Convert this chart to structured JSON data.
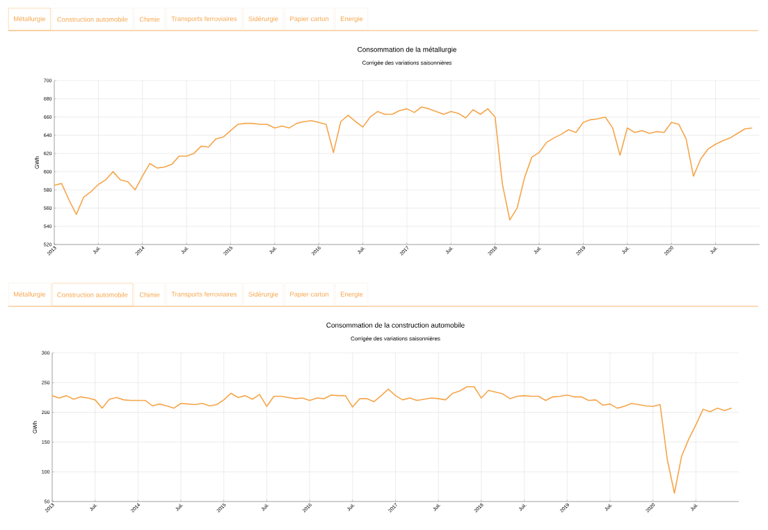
{
  "chart_data": [
    {
      "type": "line",
      "title": "Consommation de la métallurgie",
      "subtitle": "Corrigée des variations saisonnières",
      "ylabel": "GWh",
      "annotations": [
        "Métallurgie",
        "Construction automobile",
        "Chimie",
        "Transports ferroviaires",
        "Sidérurgie",
        "Papier carton",
        "Energie"
      ],
      "x": [
        "2013-01",
        "2013-02",
        "2013-03",
        "2013-04",
        "2013-05",
        "2013-06",
        "2013-07",
        "2013-08",
        "2013-09",
        "2013-10",
        "2013-11",
        "2013-12",
        "2014-01",
        "2014-02",
        "2014-03",
        "2014-04",
        "2014-05",
        "2014-06",
        "2014-07",
        "2014-08",
        "2014-09",
        "2014-10",
        "2014-11",
        "2014-12",
        "2015-01",
        "2015-02",
        "2015-03",
        "2015-04",
        "2015-05",
        "2015-06",
        "2015-07",
        "2015-08",
        "2015-09",
        "2015-10",
        "2015-11",
        "2015-12",
        "2016-01",
        "2016-02",
        "2016-03",
        "2016-04",
        "2016-05",
        "2016-06",
        "2016-07",
        "2016-08",
        "2016-09",
        "2016-10",
        "2016-11",
        "2016-12",
        "2017-01",
        "2017-02",
        "2017-03",
        "2017-04",
        "2017-05",
        "2017-06",
        "2017-07",
        "2017-08",
        "2017-09",
        "2017-10",
        "2017-11",
        "2017-12",
        "2018-01",
        "2018-02",
        "2018-03",
        "2018-04",
        "2018-05",
        "2018-06",
        "2018-07",
        "2018-08",
        "2018-09",
        "2018-10",
        "2018-11",
        "2018-12",
        "2019-01",
        "2019-02",
        "2019-03",
        "2019-04",
        "2019-05",
        "2019-06",
        "2019-07",
        "2019-08",
        "2019-09",
        "2019-10",
        "2019-11",
        "2019-12",
        "2020-01",
        "2020-02",
        "2020-03",
        "2020-04",
        "2020-05",
        "2020-06",
        "2020-07",
        "2020-08",
        "2020-09",
        "2020-10",
        "2020-11",
        "2020-12"
      ],
      "series": [
        {
          "color": "#f5a54a",
          "values": [
            585,
            587,
            569,
            553,
            572,
            578,
            586,
            591,
            600,
            591,
            589,
            580,
            595,
            609,
            604,
            605,
            608,
            617,
            617,
            620,
            628,
            627,
            636,
            638,
            645,
            652,
            653,
            653,
            652,
            652,
            648,
            650,
            648,
            653,
            655,
            656,
            654,
            652,
            621,
            655,
            662,
            655,
            649,
            660,
            666,
            663,
            663,
            667,
            669,
            665,
            671,
            669,
            666,
            663,
            666,
            664,
            659,
            668,
            663,
            669,
            660,
            586,
            547,
            560,
            593,
            616,
            621,
            632,
            637,
            641,
            646,
            643,
            654,
            657,
            658,
            660,
            648,
            618,
            648,
            643,
            645,
            642,
            644,
            643,
            654,
            652,
            636,
            595,
            614,
            625,
            630,
            634,
            637,
            642,
            647,
            648
          ]
        }
      ],
      "xlim": [
        "2013-01",
        "2021-01"
      ],
      "ylim": [
        520,
        700
      ],
      "xticks": [
        {
          "value": "2013",
          "label": "2013"
        },
        {
          "value": "2013-07",
          "label": "Juil."
        },
        {
          "value": "2014",
          "label": "2014"
        },
        {
          "value": "2014-07",
          "label": "Juil."
        },
        {
          "value": "2015",
          "label": "2015"
        },
        {
          "value": "2015-07",
          "label": "Juil."
        },
        {
          "value": "2016",
          "label": "2016"
        },
        {
          "value": "2016-07",
          "label": "Juil."
        },
        {
          "value": "2017",
          "label": "2017"
        },
        {
          "value": "2017-07",
          "label": "Juil."
        },
        {
          "value": "2018",
          "label": "2018"
        },
        {
          "value": "2018-07",
          "label": "Juil."
        },
        {
          "value": "2019",
          "label": "2019"
        },
        {
          "value": "2019-07",
          "label": "Juil."
        },
        {
          "value": "2020",
          "label": "2020"
        },
        {
          "value": "2020-07",
          "label": "Juil."
        }
      ],
      "yticks": [
        520,
        540,
        560,
        580,
        600,
        620,
        640,
        660,
        680,
        700
      ],
      "grid": true
    },
    {
      "type": "line",
      "title": "Consommation de la construction automobile",
      "subtitle": "Corrigée des variations saisonnières",
      "ylabel": "GWh",
      "annotations": [
        "Métallurgie",
        "Construction automobile",
        "Chimie",
        "Transports ferroviaires",
        "Sidérurgie",
        "Papier carton",
        "Energie"
      ],
      "x": [
        "2013-01",
        "2013-02",
        "2013-03",
        "2013-04",
        "2013-05",
        "2013-06",
        "2013-07",
        "2013-08",
        "2013-09",
        "2013-10",
        "2013-11",
        "2013-12",
        "2014-01",
        "2014-02",
        "2014-03",
        "2014-04",
        "2014-05",
        "2014-06",
        "2014-07",
        "2014-08",
        "2014-09",
        "2014-10",
        "2014-11",
        "2014-12",
        "2015-01",
        "2015-02",
        "2015-03",
        "2015-04",
        "2015-05",
        "2015-06",
        "2015-07",
        "2015-08",
        "2015-09",
        "2015-10",
        "2015-11",
        "2015-12",
        "2016-01",
        "2016-02",
        "2016-03",
        "2016-04",
        "2016-05",
        "2016-06",
        "2016-07",
        "2016-08",
        "2016-09",
        "2016-10",
        "2016-11",
        "2016-12",
        "2017-01",
        "2017-02",
        "2017-03",
        "2017-04",
        "2017-05",
        "2017-06",
        "2017-07",
        "2017-08",
        "2017-09",
        "2017-10",
        "2017-11",
        "2017-12",
        "2018-01",
        "2018-02",
        "2018-03",
        "2018-04",
        "2018-05",
        "2018-06",
        "2018-07",
        "2018-08",
        "2018-09",
        "2018-10",
        "2018-11",
        "2018-12",
        "2019-01",
        "2019-02",
        "2019-03",
        "2019-04",
        "2019-05",
        "2019-06",
        "2019-07",
        "2019-08",
        "2019-09",
        "2019-10",
        "2019-11",
        "2019-12",
        "2020-01",
        "2020-02",
        "2020-03",
        "2020-04",
        "2020-05",
        "2020-06",
        "2020-07",
        "2020-08",
        "2020-09",
        "2020-10",
        "2020-11",
        "2020-12"
      ],
      "series": [
        {
          "color": "#f5a54a",
          "values": [
            228,
            224,
            228,
            222,
            226,
            224,
            221,
            207,
            222,
            225,
            221,
            220,
            220,
            220,
            211,
            214,
            211,
            207,
            215,
            214,
            213,
            215,
            211,
            213,
            221,
            232,
            225,
            228,
            222,
            230,
            210,
            227,
            227,
            225,
            223,
            224,
            220,
            224,
            223,
            229,
            228,
            228,
            209,
            223,
            223,
            218,
            228,
            239,
            228,
            221,
            224,
            220,
            222,
            224,
            223,
            221,
            232,
            236,
            243,
            243,
            224,
            237,
            234,
            231,
            223,
            227,
            228,
            227,
            227,
            220,
            226,
            227,
            229,
            226,
            226,
            220,
            221,
            212,
            214,
            207,
            210,
            215,
            213,
            211,
            210,
            213,
            121,
            64,
            126,
            155,
            179,
            205,
            201,
            207,
            203,
            207
          ]
        }
      ],
      "xlim": [
        "2013-01",
        "2021-01"
      ],
      "ylim": [
        50,
        300
      ],
      "xticks": [
        {
          "value": "2013",
          "label": "2013"
        },
        {
          "value": "2013-07",
          "label": "Juil."
        },
        {
          "value": "2014",
          "label": "2014"
        },
        {
          "value": "2014-07",
          "label": "Juil."
        },
        {
          "value": "2015",
          "label": "2015"
        },
        {
          "value": "2015-07",
          "label": "Juil."
        },
        {
          "value": "2016",
          "label": "2016"
        },
        {
          "value": "2016-07",
          "label": "Juil."
        },
        {
          "value": "2017",
          "label": "2017"
        },
        {
          "value": "2017-07",
          "label": "Juil."
        },
        {
          "value": "2018",
          "label": "2018"
        },
        {
          "value": "2018-07",
          "label": "Juil."
        },
        {
          "value": "2019",
          "label": "2019"
        },
        {
          "value": "2019-07",
          "label": "Juil."
        },
        {
          "value": "2020",
          "label": "2020"
        },
        {
          "value": "2020-07",
          "label": "Juil."
        }
      ],
      "yticks": [
        50,
        100,
        150,
        200,
        250,
        300
      ],
      "grid": true
    }
  ]
}
